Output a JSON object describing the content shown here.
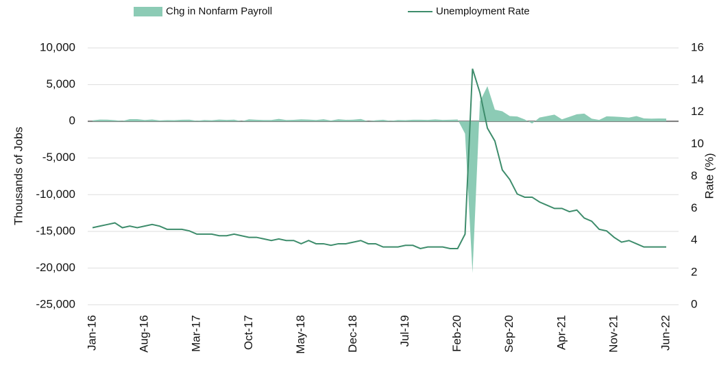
{
  "chart_data": {
    "type": "combo",
    "y_label": "Thousands of Jobs",
    "y2_label": "Rate (%)",
    "categories": [
      "Jan-16",
      null,
      null,
      null,
      null,
      null,
      null,
      "Aug-16",
      null,
      null,
      null,
      null,
      null,
      null,
      "Mar-17",
      null,
      null,
      null,
      null,
      null,
      null,
      "Oct-17",
      null,
      null,
      null,
      null,
      null,
      null,
      "May-18",
      null,
      null,
      null,
      null,
      null,
      null,
      "Dec-18",
      null,
      null,
      null,
      null,
      null,
      null,
      "Jul-19",
      null,
      null,
      null,
      null,
      null,
      null,
      "Feb-20",
      null,
      null,
      null,
      null,
      null,
      null,
      "Sep-20",
      null,
      null,
      null,
      null,
      null,
      null,
      "Apr-21",
      null,
      null,
      null,
      null,
      null,
      null,
      "Nov-21",
      null,
      null,
      null,
      null,
      null,
      null,
      "Jun-22"
    ],
    "series": [
      {
        "name": "Chg in Nonfarm Payroll",
        "type": "area",
        "color": "#8ccbb5",
        "values": [
          126,
          237,
          225,
          153,
          43,
          297,
          291,
          176,
          249,
          124,
          164,
          155,
          216,
          219,
          73,
          175,
          138,
          239,
          190,
          221,
          14,
          271,
          216,
          175,
          176,
          324,
          182,
          196,
          270,
          235,
          173,
          282,
          108,
          277,
          196,
          227,
          312,
          1,
          147,
          216,
          62,
          178,
          159,
          207,
          208,
          185,
          261,
          184,
          214,
          251,
          -1683,
          -20679,
          2725,
          4781,
          1583,
          1371,
          711,
          654,
          264,
          -306,
          520,
          710,
          916,
          269,
          614,
          962,
          1053,
          366,
          194,
          677,
          647,
          588,
          504,
          714,
          398,
          368,
          386,
          372
        ]
      },
      {
        "name": "Unemployment Rate",
        "type": "line",
        "axis": "y2",
        "color": "#3d8c6b",
        "values": [
          4.8,
          4.9,
          5.0,
          5.1,
          4.8,
          4.9,
          4.8,
          4.9,
          5.0,
          4.9,
          4.7,
          4.7,
          4.7,
          4.6,
          4.4,
          4.4,
          4.4,
          4.3,
          4.3,
          4.4,
          4.3,
          4.2,
          4.2,
          4.1,
          4.0,
          4.1,
          4.0,
          4.0,
          3.8,
          4.0,
          3.8,
          3.8,
          3.7,
          3.8,
          3.8,
          3.9,
          4.0,
          3.8,
          3.8,
          3.6,
          3.6,
          3.6,
          3.7,
          3.7,
          3.5,
          3.6,
          3.6,
          3.6,
          3.5,
          3.5,
          4.4,
          14.7,
          13.2,
          11.0,
          10.2,
          8.4,
          7.8,
          6.9,
          6.7,
          6.7,
          6.4,
          6.2,
          6.0,
          6.0,
          5.8,
          5.9,
          5.4,
          5.2,
          4.7,
          4.6,
          4.2,
          3.9,
          4.0,
          3.8,
          3.6,
          3.6,
          3.6,
          3.6
        ]
      }
    ],
    "ylim": [
      -25000,
      10000
    ],
    "yticks": [
      {
        "value": 10000,
        "label": "10,000"
      },
      {
        "value": 5000,
        "label": "5,000"
      },
      0,
      {
        "value": -5000,
        "label": "-5,000"
      },
      {
        "value": -10000,
        "label": "-10,000"
      },
      {
        "value": -15000,
        "label": "-15,000"
      },
      {
        "value": -20000,
        "label": "-20,000"
      },
      {
        "value": -25000,
        "label": "-25,000"
      }
    ],
    "y2lim": [
      0,
      16
    ],
    "y2ticks": [
      0,
      2,
      4,
      6,
      8,
      10,
      12,
      14,
      16
    ],
    "grid": true
  }
}
